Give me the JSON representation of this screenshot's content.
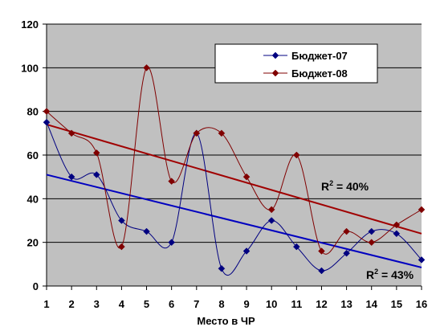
{
  "chart_data": {
    "type": "line",
    "xlabel": "Место в ЧР",
    "ylabel": "",
    "x": [
      1,
      2,
      3,
      4,
      5,
      6,
      7,
      8,
      9,
      10,
      11,
      12,
      13,
      14,
      15,
      16
    ],
    "ylim": [
      0,
      120
    ],
    "y_ticks": [
      0,
      20,
      40,
      60,
      80,
      100,
      120
    ],
    "grid": true,
    "legend_position": "top-right",
    "background_color": "#c0c0c0",
    "series": [
      {
        "name": "Бюджет-07",
        "color": "#000080",
        "marker": "diamond",
        "values": [
          75,
          50,
          51,
          30,
          25,
          20,
          70,
          8,
          16,
          30,
          18,
          7,
          15,
          25,
          24,
          12
        ]
      },
      {
        "name": "Бюджет-08",
        "color": "#800000",
        "marker": "diamond",
        "values": [
          80,
          70,
          61,
          18,
          100,
          48,
          70,
          70,
          50,
          35,
          60,
          16,
          25,
          20,
          28,
          35
        ]
      }
    ],
    "trendlines": [
      {
        "series": "Бюджет-07",
        "type": "linear",
        "color": "#0000c0",
        "start": 51,
        "end": 8.5
      },
      {
        "series": "Бюджет-08",
        "type": "linear",
        "color": "#a00000",
        "start": 74,
        "end": 24
      }
    ],
    "annotations": [
      {
        "label": "R",
        "sup": "2",
        "text": " = 40%",
        "series": "Бюджет-08"
      },
      {
        "label": "R",
        "sup": "2",
        "text": " = 43%",
        "series": "Бюджет-07"
      }
    ]
  }
}
